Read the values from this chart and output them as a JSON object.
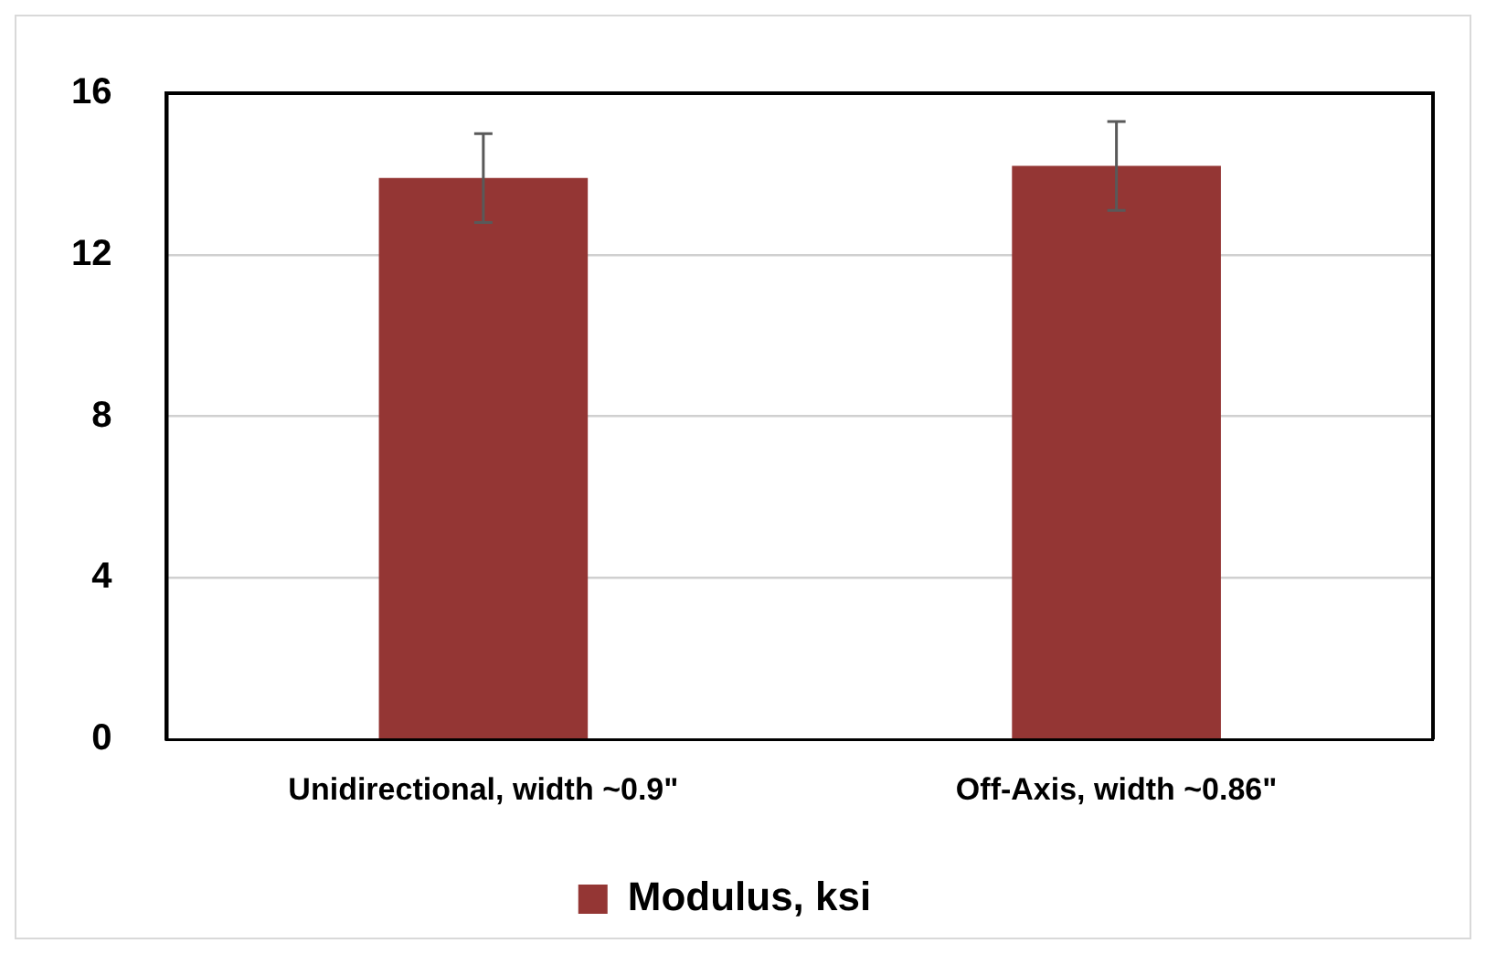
{
  "chart_data": {
    "type": "bar",
    "categories": [
      "Unidirectional, width ~0.9\"",
      "Off-Axis, width ~0.86\""
    ],
    "series": [
      {
        "name": "Modulus, ksi",
        "color": "#943634",
        "values": [
          13.9,
          14.2
        ],
        "errors": [
          1.1,
          1.1
        ]
      }
    ],
    "ylim": [
      0,
      16
    ],
    "yticks": [
      0,
      4,
      8,
      12,
      16
    ],
    "grid": "y",
    "legend": "bottom"
  }
}
